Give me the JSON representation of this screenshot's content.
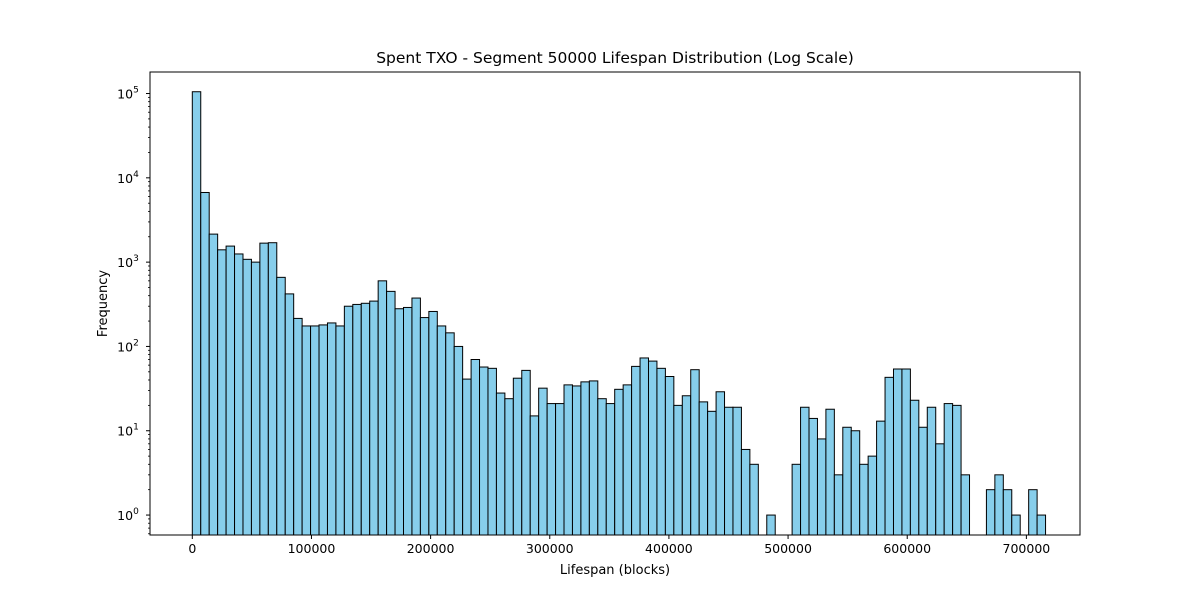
{
  "chart_data": {
    "type": "bar",
    "title": "Spent TXO - Segment 50000 Lifespan Distribution (Log Scale)",
    "xlabel": "Lifespan (blocks)",
    "ylabel": "Frequency",
    "yscale": "log",
    "xlim": [
      -35500,
      745000
    ],
    "ylim": [
      0.58,
      180000
    ],
    "grid": false,
    "bar_color": "#87ceeb",
    "edge_color": "#000000",
    "bin_start": 0,
    "bin_width": 7090,
    "x_ticks": [
      0,
      100000,
      200000,
      300000,
      400000,
      500000,
      600000,
      700000
    ],
    "x_tick_labels": [
      "0",
      "100000",
      "200000",
      "300000",
      "400000",
      "500000",
      "600000",
      "700000"
    ],
    "y_ticks": [
      1,
      10,
      100,
      1000,
      10000,
      100000
    ],
    "y_tick_labels": [
      {
        "base": "10",
        "exp": "0"
      },
      {
        "base": "10",
        "exp": "1"
      },
      {
        "base": "10",
        "exp": "2"
      },
      {
        "base": "10",
        "exp": "3"
      },
      {
        "base": "10",
        "exp": "4"
      },
      {
        "base": "10",
        "exp": "5"
      }
    ],
    "values": [
      105000,
      6700,
      2150,
      1400,
      1550,
      1250,
      1080,
      1000,
      1680,
      1700,
      660,
      420,
      215,
      175,
      175,
      180,
      190,
      175,
      300,
      315,
      325,
      345,
      600,
      450,
      280,
      290,
      375,
      220,
      260,
      175,
      145,
      100,
      41,
      70,
      57,
      55,
      28,
      24,
      42,
      52,
      15,
      32,
      21,
      21,
      35,
      34,
      38,
      39,
      24,
      21,
      31,
      35,
      58,
      73,
      67,
      55,
      44,
      20,
      26,
      53,
      22,
      17,
      29,
      19,
      19,
      6,
      4,
      0,
      1,
      0,
      0,
      4,
      19,
      14,
      8,
      18,
      3,
      11,
      10,
      4,
      5,
      13,
      43,
      54,
      54,
      23,
      11,
      19,
      7,
      21,
      20,
      3,
      0,
      0,
      2,
      3,
      2,
      1,
      0,
      2,
      1
    ]
  }
}
